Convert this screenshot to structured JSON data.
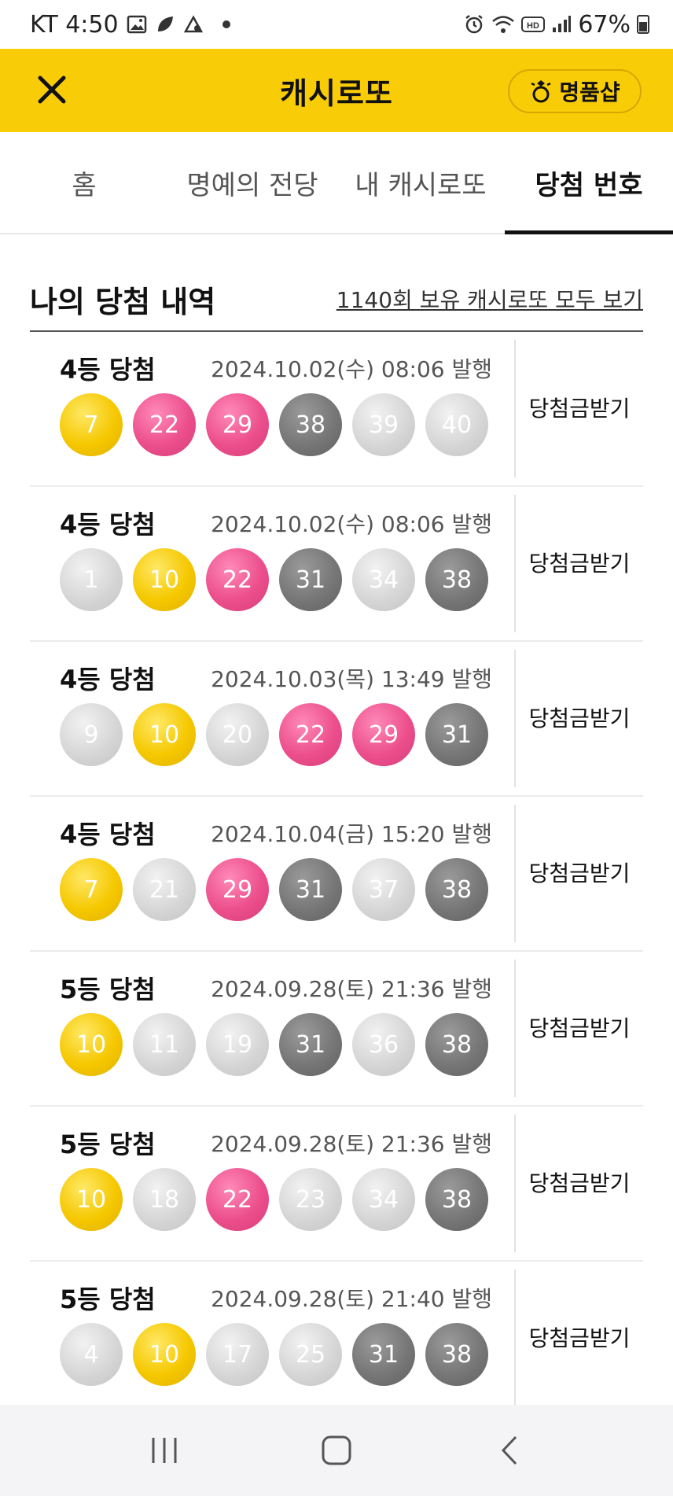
{
  "status": {
    "carrier_time": "KT 4:50",
    "battery": "67%"
  },
  "header": {
    "title": "캐시로또",
    "shop_label": "명품샵"
  },
  "tabs": [
    {
      "label": "홈",
      "active": false
    },
    {
      "label": "명예의 전당",
      "active": false
    },
    {
      "label": "내 캐시로또",
      "active": false
    },
    {
      "label": "당첨 번호",
      "active": true
    }
  ],
  "section": {
    "title": "나의 당첨 내역",
    "view_all": "1140회 보유 캐시로또 모두 보기"
  },
  "claim_label_line1": "당첨금",
  "claim_label_line2": "받기",
  "entries": [
    {
      "rank": "4등 당첨",
      "issued": "2024.10.02(수) 08:06 발행",
      "balls": [
        {
          "n": "7",
          "c": "yellow"
        },
        {
          "n": "22",
          "c": "pink"
        },
        {
          "n": "29",
          "c": "pink"
        },
        {
          "n": "38",
          "c": "dark"
        },
        {
          "n": "39",
          "c": "light"
        },
        {
          "n": "40",
          "c": "light"
        }
      ]
    },
    {
      "rank": "4등 당첨",
      "issued": "2024.10.02(수) 08:06 발행",
      "balls": [
        {
          "n": "1",
          "c": "light"
        },
        {
          "n": "10",
          "c": "yellow"
        },
        {
          "n": "22",
          "c": "pink"
        },
        {
          "n": "31",
          "c": "dark"
        },
        {
          "n": "34",
          "c": "light"
        },
        {
          "n": "38",
          "c": "dark"
        }
      ]
    },
    {
      "rank": "4등 당첨",
      "issued": "2024.10.03(목) 13:49 발행",
      "balls": [
        {
          "n": "9",
          "c": "light"
        },
        {
          "n": "10",
          "c": "yellow"
        },
        {
          "n": "20",
          "c": "light"
        },
        {
          "n": "22",
          "c": "pink"
        },
        {
          "n": "29",
          "c": "pink"
        },
        {
          "n": "31",
          "c": "dark"
        }
      ]
    },
    {
      "rank": "4등 당첨",
      "issued": "2024.10.04(금) 15:20 발행",
      "balls": [
        {
          "n": "7",
          "c": "yellow"
        },
        {
          "n": "21",
          "c": "light"
        },
        {
          "n": "29",
          "c": "pink"
        },
        {
          "n": "31",
          "c": "dark"
        },
        {
          "n": "37",
          "c": "light"
        },
        {
          "n": "38",
          "c": "dark"
        }
      ]
    },
    {
      "rank": "5등 당첨",
      "issued": "2024.09.28(토) 21:36 발행",
      "balls": [
        {
          "n": "10",
          "c": "yellow"
        },
        {
          "n": "11",
          "c": "light"
        },
        {
          "n": "19",
          "c": "light"
        },
        {
          "n": "31",
          "c": "dark"
        },
        {
          "n": "36",
          "c": "light"
        },
        {
          "n": "38",
          "c": "dark"
        }
      ]
    },
    {
      "rank": "5등 당첨",
      "issued": "2024.09.28(토) 21:36 발행",
      "balls": [
        {
          "n": "10",
          "c": "yellow"
        },
        {
          "n": "18",
          "c": "light"
        },
        {
          "n": "22",
          "c": "pink"
        },
        {
          "n": "23",
          "c": "light"
        },
        {
          "n": "34",
          "c": "light"
        },
        {
          "n": "38",
          "c": "dark"
        }
      ]
    },
    {
      "rank": "5등 당첨",
      "issued": "2024.09.28(토) 21:40 발행",
      "balls": [
        {
          "n": "4",
          "c": "light"
        },
        {
          "n": "10",
          "c": "yellow"
        },
        {
          "n": "17",
          "c": "light"
        },
        {
          "n": "25",
          "c": "light"
        },
        {
          "n": "31",
          "c": "dark"
        },
        {
          "n": "38",
          "c": "dark"
        }
      ]
    }
  ],
  "colors": {
    "brand_yellow": "#f9cc08",
    "ball_yellow": "#f5c800",
    "ball_pink": "#ec4f8c",
    "ball_dark": "#777777",
    "ball_light": "#d4d4d4"
  }
}
